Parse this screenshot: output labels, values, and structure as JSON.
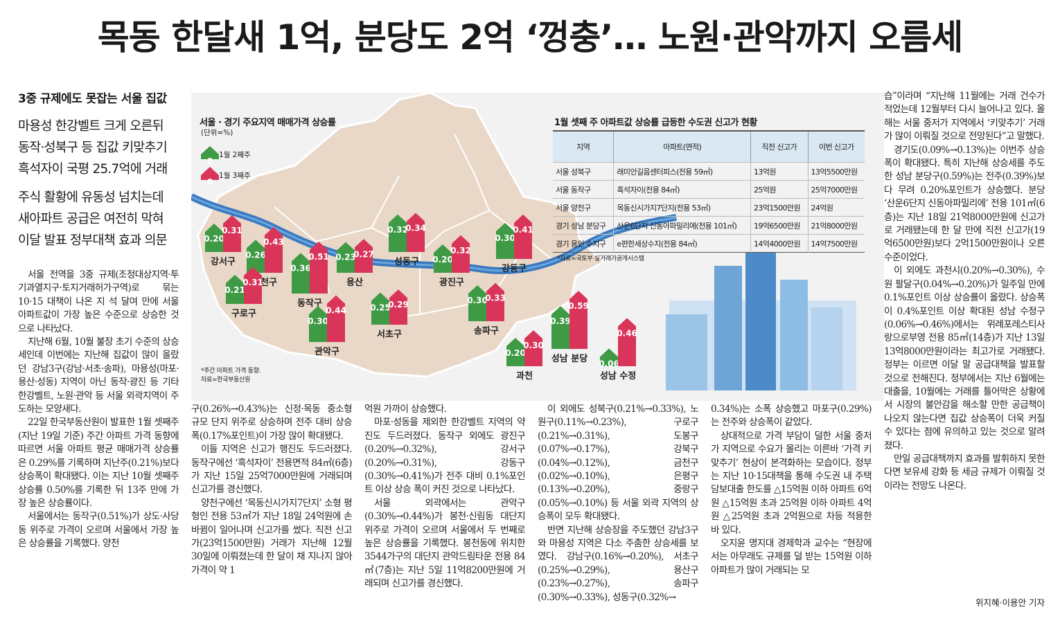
{
  "headline": "목동 한달새 1억, 분당도 2억 ‘껑충’… 노원·관악까지 오름세",
  "subheads": {
    "lead": "3중 규제에도 못잡는 서울 집값",
    "group1": [
      "마용성 한강벨트 크게 오른뒤",
      "동작·성북구 등 집값 키맞추기",
      "흑석자이 국평 25.7억에 거래"
    ],
    "group2": [
      "주식 활황에 유동성 넘치는데",
      "새아파트 공급은 여전히 막혀",
      "이달 발표 정부대책 효과 의문"
    ]
  },
  "map_graphic": {
    "title": "서울 · 경기 주요지역 매매가격 상승률",
    "unit": "(단위=%)",
    "legend": [
      "1월 2째주",
      "1월 3째주"
    ],
    "colors": {
      "week2": "#3f9a45",
      "week3": "#d9355a",
      "map": "#e7d6c6",
      "river": "#2f72b9"
    },
    "districts": [
      {
        "name": "강서구",
        "w2": "0.20",
        "w3": "0.31"
      },
      {
        "name": "양천구",
        "w2": "0.26",
        "w3": "0.43"
      },
      {
        "name": "구로구",
        "w2": "0.21",
        "w3": "0.31"
      },
      {
        "name": "동작구",
        "w2": "0.36",
        "w3": "0.51"
      },
      {
        "name": "관악구",
        "w2": "0.30",
        "w3": "0.44"
      },
      {
        "name": "용산",
        "w2": "0.23",
        "w3": "0.27"
      },
      {
        "name": "성동구",
        "w2": "0.32",
        "w3": "0.34"
      },
      {
        "name": "광진구",
        "w2": "0.20",
        "w3": "0.32"
      },
      {
        "name": "강동구",
        "w2": "0.30",
        "w3": "0.41"
      },
      {
        "name": "서초구",
        "w2": "0.25",
        "w3": "0.29"
      },
      {
        "name": "송파구",
        "w2": "0.30",
        "w3": "0.33"
      },
      {
        "name": "과천",
        "w2": "0.20",
        "w3": "0.30"
      },
      {
        "name": "성남 분당",
        "w2": "0.39",
        "w3": "0.59"
      },
      {
        "name": "성남 수정",
        "w2": "0.06",
        "w3": "0.46"
      }
    ],
    "note1": "*주간 아파트 가격 동향.",
    "note2": "자료=한국부동산원"
  },
  "price_table": {
    "title": "1월 셋째 주 아파트값 상승률 급등한 수도권 신고가 현황",
    "headers": [
      "지역",
      "아파트(면적)",
      "직전 신고가",
      "이번 신고가"
    ],
    "rows": [
      [
        "서울 성북구",
        "래미안길음센터피스(전용 59㎡)",
        "13억원",
        "13억5500만원"
      ],
      [
        "서울 동작구",
        "흑석자이(전용 84㎡)",
        "25억원",
        "25억7000만원"
      ],
      [
        "서울 양천구",
        "목동신시가지7단지(전용 53㎡)",
        "23억1500만원",
        "24억원"
      ],
      [
        "경기 성남 분당구",
        "산운6단지 신동아파밀리에(전용 101㎡)",
        "19억6500만원",
        "21억8000만원"
      ],
      [
        "경기 용인 수지구",
        "e편한세상수지(전용 84㎡)",
        "14억4000만원",
        "14억7500만원"
      ]
    ],
    "source": "*자료=국토부 실거래가공개시스템"
  },
  "columns": {
    "c1": [
      "서울 전역을 3중 규제(조정대상지역·투기과열지구·토지거래허가구역)로 묶는 10·15 대책이 나온 지 석 달여 만에 서울 아파트값이 가장 높은 수준으로 상승한 것으로 나타났다.",
      "지난해 6월, 10월 불장 초기 수준의 상승세인데 이번에는 지난해 집값이 많이 올랐던 강남3구(강남·서초·송파), 마용성(마포·용산·성동) 지역이 아닌 동작·광진 등 기타 한강벨트, 노원·관악 등 서울 외곽지역이 주도하는 모양새다.",
      "22일 한국부동산원이 발표한 1월 셋째주(지난 19일 기준) 주간 아파트 가격 동향에 따르면 서울 아파트 평균 매매가격 상승률은 0.29%를 기록하며 지난주(0.21%)보다 상승폭이 확대됐다. 이는 지난 10월 셋째주 상승률 0.50%를 기록한 뒤 13주 만에 가장 높은 상승률이다.",
      "서울에서는 동작구(0.51%)가 상도·사당동 위주로 가격이 오르며 서울에서 가장 높은 상승률을 기록했다. 양천"
    ],
    "c2": [
      "구(0.26%→0.43%)는 신정·목동 중소형 규모 단지 위주로 상승하며 전주 대비 상승폭(0.17%포인트)이 가장 많이 확대됐다.",
      "이들 지역은 신고가 행진도 두드러졌다. 동작구에선 ‘흑석자이’ 전용면적 84㎡(6층)가 지난 15일 25억7000만원에 거래되며 신고가를 경신했다.",
      "양천구에선 ‘목동신시가지7단지’ 소형 평형인 전용 53㎡가 지난 18일 24억원에 손바뀜이 일어나며 신고가를 썼다. 직전 신고가(23억1500만원) 거래가 지난해 12월 30일에 이뤄졌는데 한 달이 채 지나지 않아 가격이 약 1"
    ],
    "c3": [
      "억원 가까이 상승했다.",
      "마포·성동을 제외한 한강벨트 지역의 약진도 두드러졌다. 동작구 외에도 광진구(0.20%→0.32%), 강서구(0.20%→0.31%), 강동구(0.30%→0.41%)가 전주 대비 0.1%포인트 이상 상승 폭이 커진 것으로 나타났다.",
      "서울 외곽에서는 관악구(0.30%→0.44%)가 봉천·신림동 대단지 위주로 가격이 오르며 서울에서 두 번째로 높은 상승률을 기록했다. 봉천동에 위치한 3544가구의 대단지 관악드림타운 전용 84㎡(7층)는 지난 5일 11억8200만원에 거래되며 신고가를 경신했다."
    ],
    "c4": [
      "이 외에도 성북구(0.21%→0.33%), 노원구(0.11%→0.23%), 구로구(0.21%→0.31%), 도봉구(0.07%→0.17%), 강북구(0.04%→0.12%), 금천구(0.02%→0.10%), 은평구(0.13%→0.20%), 중랑구(0.05%→0.10%) 등 서울 외곽 지역의 상승폭이 모두 확대됐다.",
      "반면 지난해 상승장을 주도했던 강남3구와 마용성 지역은 다소 주춤한 상승세를 보였다. 강남구(0.16%→0.20%), 서초구(0.25%→0.29%), 용산구(0.23%→0.27%), 송파구(0.30%→0.33%), 성동구(0.32%→"
    ],
    "c5": [
      "0.34%)는 소폭 상승했고 마포구(0.29%)는 전주와 상승폭이 같았다.",
      "상대적으로 가격 부담이 덜한 서울 중저가 지역으로 수요가 몰리는 이른바 ‘가격 키맞추기’ 현상이 본격화하는 모습이다. 정부는 지난 10·15대책을 통해 수도권 내 주택담보대출 한도를 △15억원 이하 아파트 6억원 △15억원 초과 25억원 이하 아파트 4억원 △25억원 초과 2억원으로 차등 적용한 바 있다.",
      "오지윤 명지대 경제학과 교수는 “현장에서는 아무래도 규제를 덜 받는 15억원 이하 아파트가 많이 거래되는 모"
    ],
    "c6": [
      "습”이라며 “지난해 11월에는 거래 건수가 적었는데 12월부터 다시 늘어나고 있다. 올해는 서울 중저가 지역에서 ‘키맞추기’ 거래가 많이 이뤄질 것으로 전망된다”고 말했다.",
      "경기도(0.09%→0.13%)는 이번주 상승폭이 확대됐다. 특히 지난해 상승세를 주도한 성남 분당구(0.59%)는 전주(0.39%)보다 무려 0.20%포인트가 상승했다. 분당 ‘산운6단지 신동아파밀리에’ 전용 101㎡(6층)는 지난 18일 21억8000만원에 신고가로 거래됐는데 한 달 만에 직전 신고가(19억6500만원)보다 2억1500만원이나 오른 수준이었다.",
      "이 외에도 과천시(0.20%→0.30%), 수원 팔달구(0.04%→0.20%)가 일주일 만에 0.1%포인트 이상 상승률이 올랐다. 상승폭이 0.4%포인트 이상 확대된 성남 수정구(0.06%→0.46%)에서는 위례포레스티사랑으로부영 전용 85㎡(14층)가 지난 13일 13억8000만원이라는 최고가로 거래됐다. 정부는 이르면 이달 말 공급대책을 발표할 것으로 전해진다. 정부에서는 지난 6월에는 대출을, 10월에는 거래를 틀어막은 상황에서 시장의 불안감을 해소할 만한 공급책이 나오지 않는다면 집값 상승폭이 더욱 커질 수 있다는 점에 유의하고 있는 것으로 알려졌다.",
      "만일 공급대책까지 효과를 발휘하지 못한다면 보유세 강화 등 세금 규제가 이뤄질 것이라는 전망도 나온다."
    ],
    "byline": "위지혜·이용안 기자"
  }
}
